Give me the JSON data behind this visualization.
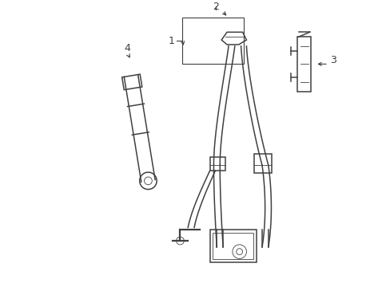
{
  "bg_color": "#ffffff",
  "line_color": "#404040",
  "label_color": "#000000",
  "lw_main": 1.1,
  "lw_thin": 0.6,
  "lw_thick": 1.6,
  "figsize": [
    4.89,
    3.6
  ],
  "dpi": 100
}
